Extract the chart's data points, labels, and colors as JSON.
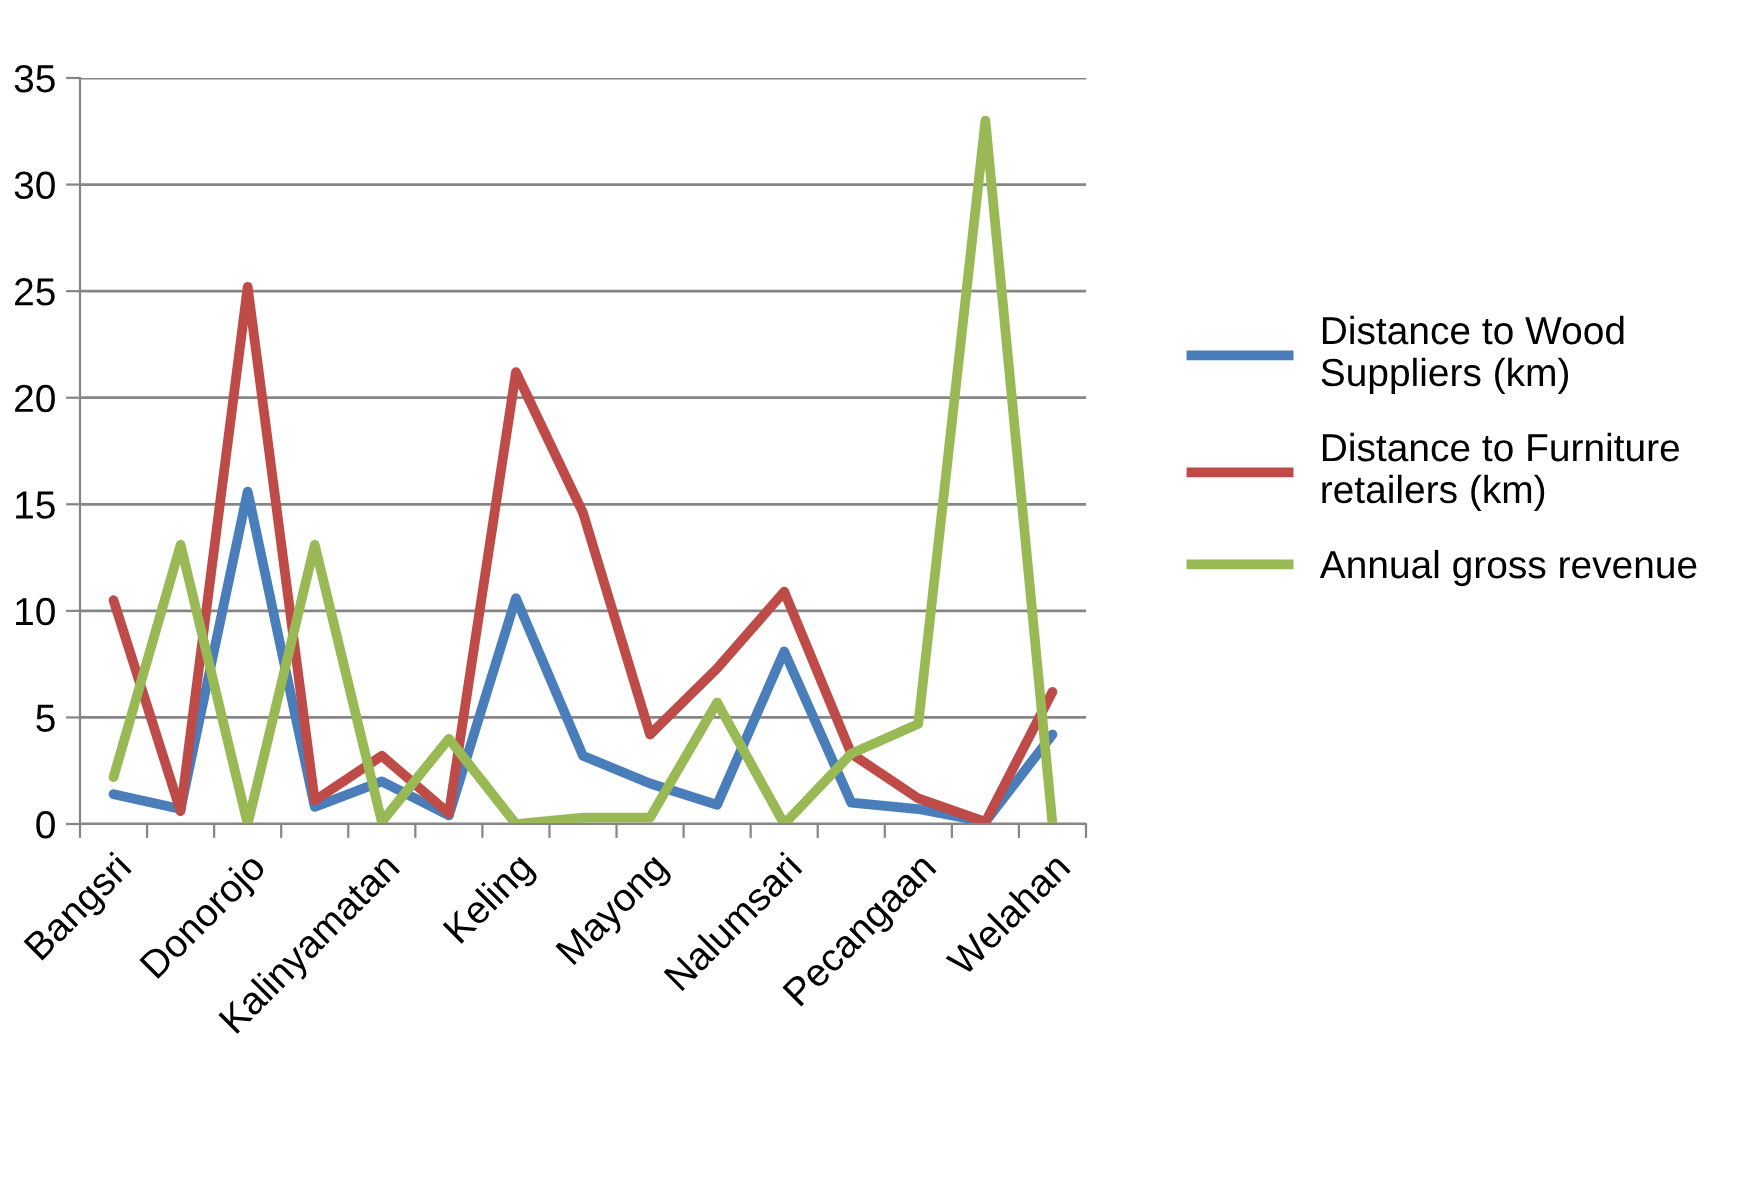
{
  "chart_data": {
    "type": "line",
    "categories": [
      "Bangsri",
      null,
      "Donorojo",
      null,
      "Kalinyamatan",
      null,
      "Keling",
      null,
      "Mayong",
      null,
      "Nalumsari",
      null,
      "Pecangaan",
      null,
      "Welahan"
    ],
    "series": [
      {
        "name": "Distance to Wood Suppliers (km)",
        "color": "#4a7ebb",
        "values": [
          1.4,
          0.7,
          15.6,
          0.8,
          2.0,
          0.4,
          10.6,
          3.2,
          1.9,
          0.9,
          8.1,
          1.0,
          0.7,
          0.1,
          4.2
        ]
      },
      {
        "name": "Distance to Furniture retailers (km)",
        "color": "#be4b48",
        "values": [
          10.5,
          0.6,
          25.2,
          1.1,
          3.2,
          0.5,
          21.2,
          14.6,
          4.2,
          7.3,
          10.9,
          3.3,
          1.2,
          0.1,
          6.2
        ]
      },
      {
        "name": "Annual gross revenue",
        "color": "#98b954",
        "values": [
          2.2,
          13.1,
          0.0,
          13.1,
          0.1,
          4.0,
          0.0,
          0.3,
          0.3,
          5.7,
          0.0,
          3.3,
          4.7,
          33.0,
          0.0
        ]
      }
    ],
    "ylim": [
      0,
      35
    ],
    "yticks": [
      0,
      5,
      10,
      15,
      20,
      25,
      30,
      35
    ],
    "grid": "y",
    "legend": "right",
    "marker": "none",
    "line_style": "solid"
  }
}
